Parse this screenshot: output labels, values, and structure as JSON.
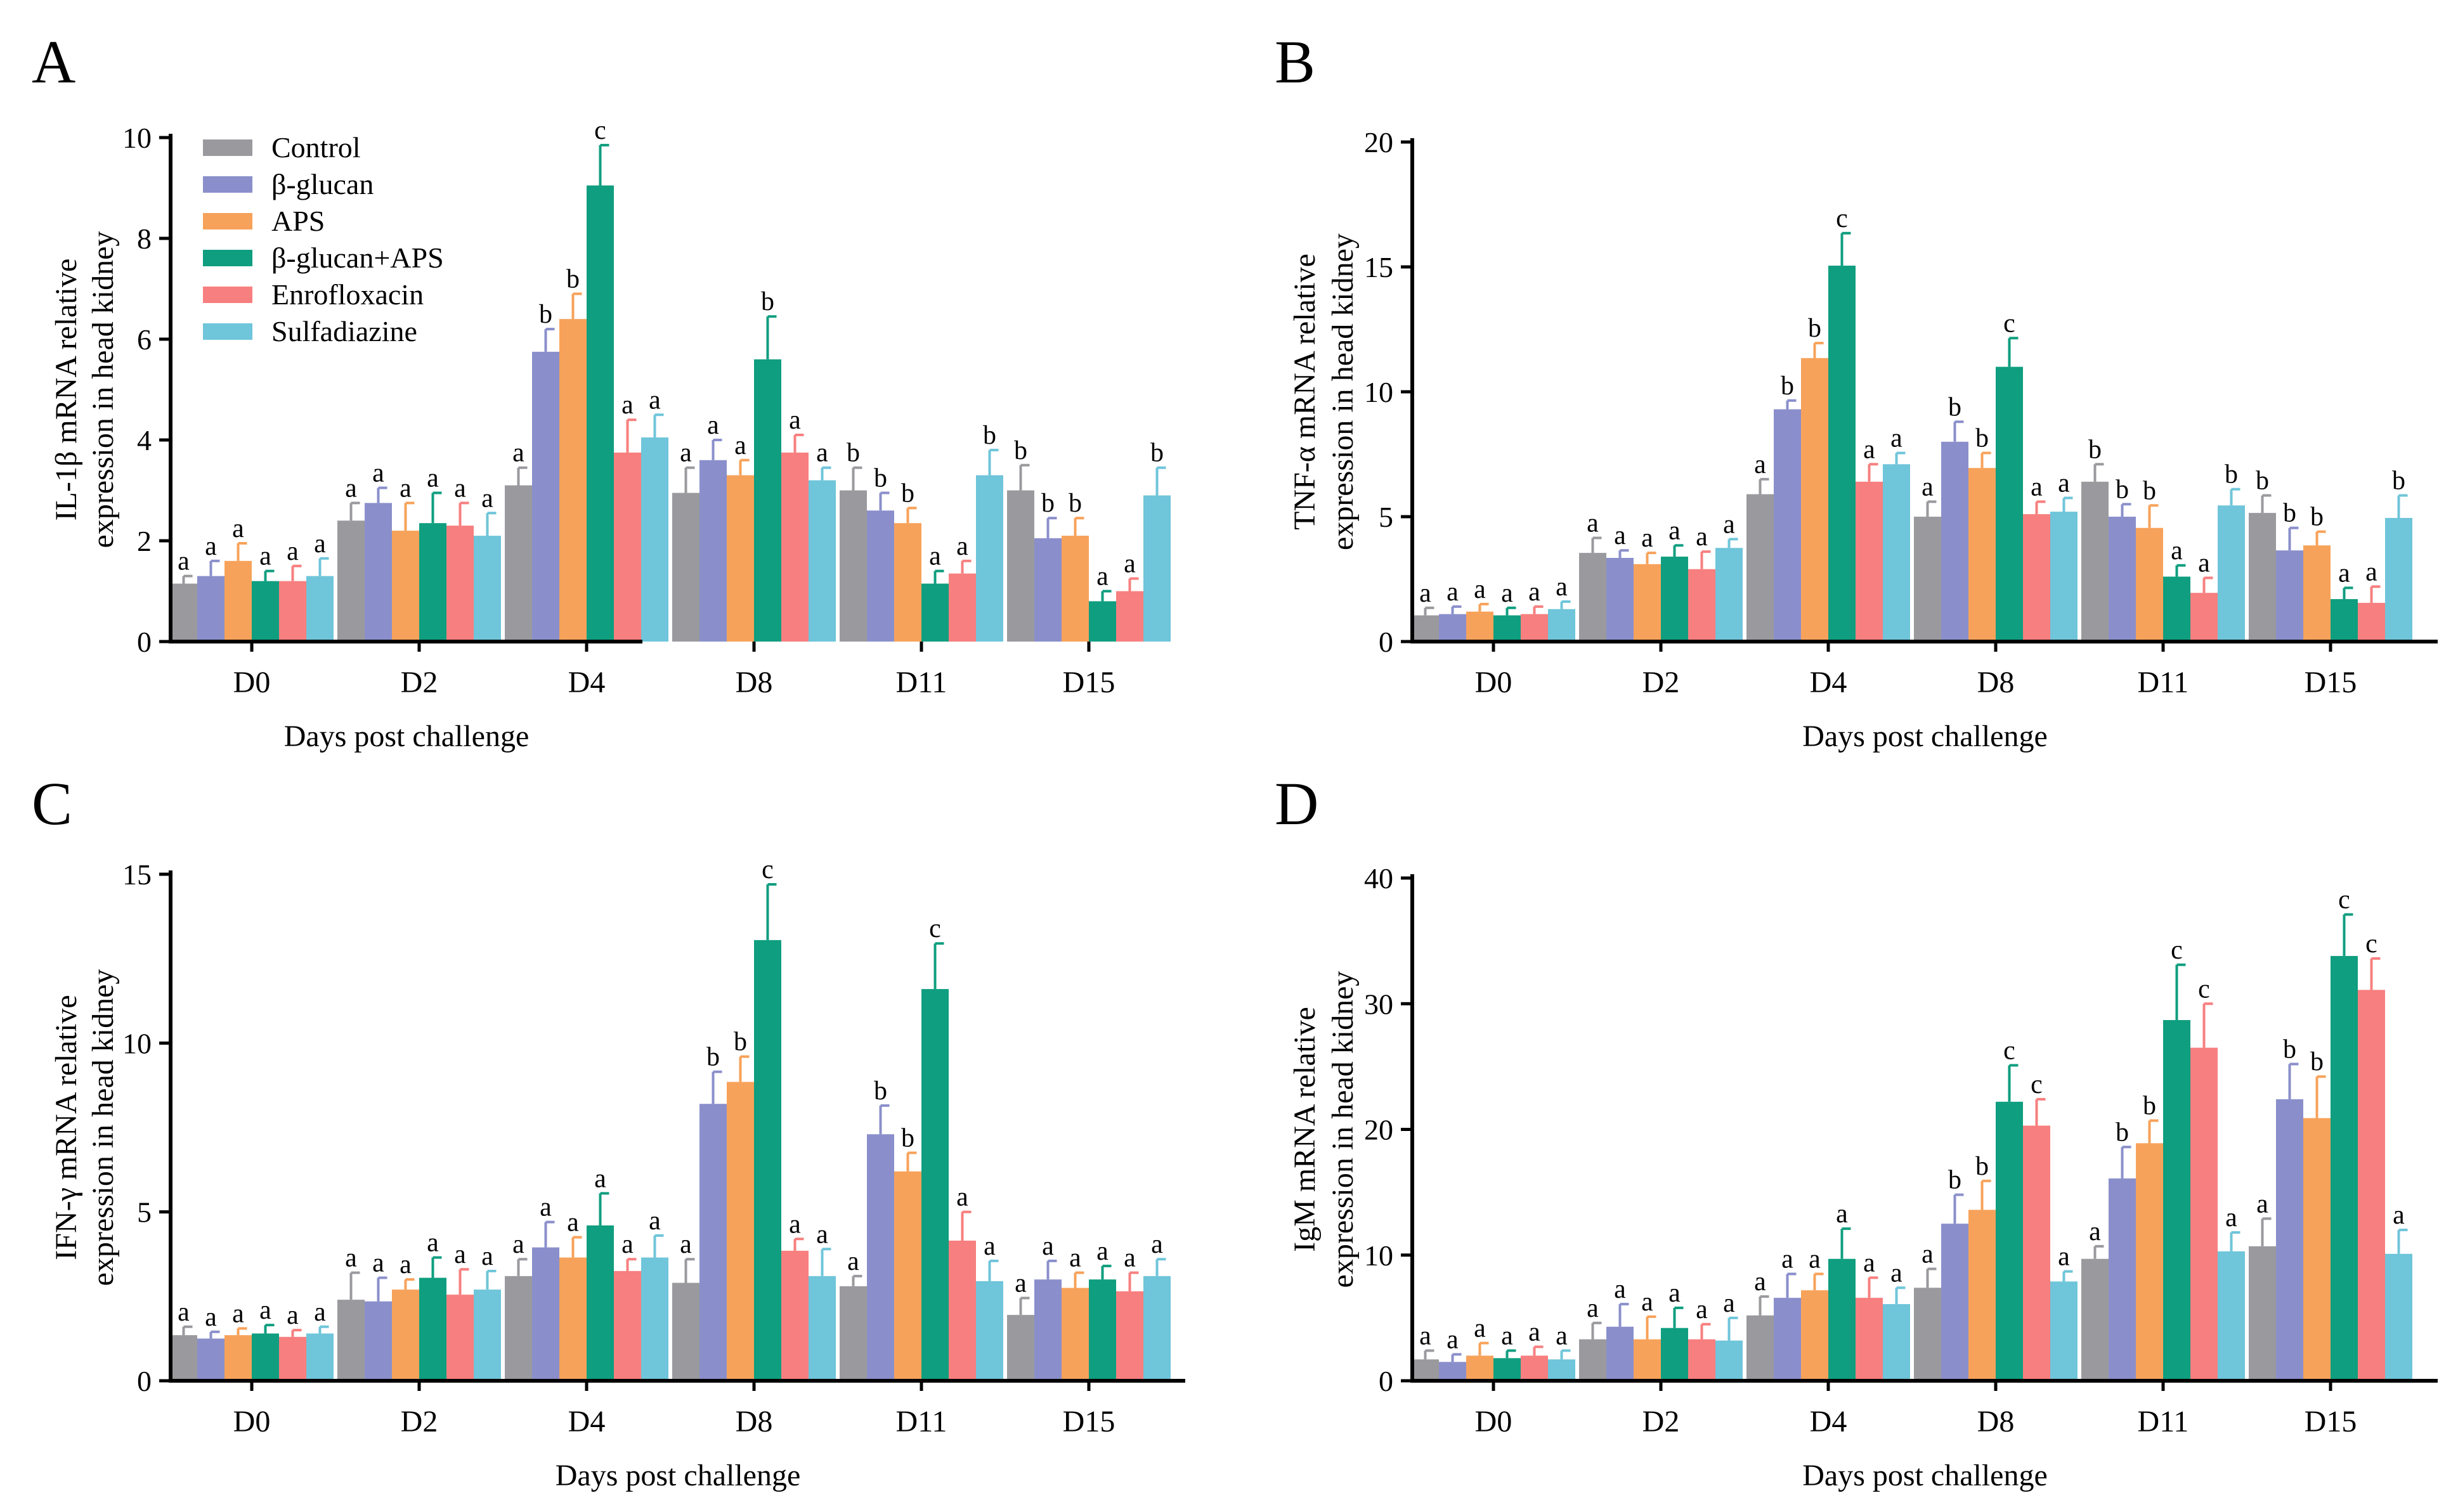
{
  "legend": [
    "Control",
    "β-glucan",
    "APS",
    "β-glucan+APS",
    "Enrofloxacin",
    "Sulfadiazine"
  ],
  "colors": {
    "Control": "#9a9a9e",
    "β-glucan": "#8a8fcb",
    "APS": "#f7a25a",
    "β-glucan+APS": "#0f9e7f",
    "Enrofloxacin": "#f77f7f",
    "Sulfadiazine": "#6fc5da"
  },
  "chart_data": [
    {
      "panel": "A",
      "type": "bar",
      "categories": [
        "D0",
        "D2",
        "D4",
        "D8",
        "D11",
        "D15"
      ],
      "xlabel": "Days post challenge",
      "ylabel": [
        "IL-1β mRNA relative",
        "expression in head kidney"
      ],
      "ylim": [
        0,
        10
      ],
      "yticks": [
        0,
        2,
        4,
        6,
        8,
        10
      ],
      "series": [
        {
          "name": "Control",
          "values": [
            1.15,
            2.4,
            3.1,
            2.95,
            3.0,
            3.0
          ],
          "errors": [
            0.15,
            0.35,
            0.35,
            0.5,
            0.45,
            0.5
          ],
          "letters": [
            "a",
            "a",
            "a",
            "a",
            "b",
            "b"
          ]
        },
        {
          "name": "β-glucan",
          "values": [
            1.3,
            2.75,
            5.75,
            3.6,
            2.6,
            2.05
          ],
          "errors": [
            0.3,
            0.3,
            0.45,
            0.4,
            0.35,
            0.4
          ],
          "letters": [
            "a",
            "a",
            "b",
            "a",
            "b",
            "b"
          ]
        },
        {
          "name": "APS",
          "values": [
            1.6,
            2.2,
            6.4,
            3.3,
            2.35,
            2.1
          ],
          "errors": [
            0.35,
            0.55,
            0.5,
            0.3,
            0.3,
            0.35
          ],
          "letters": [
            "a",
            "a",
            "b",
            "a",
            "b",
            "b"
          ]
        },
        {
          "name": "β-glucan+APS",
          "values": [
            1.2,
            2.35,
            9.05,
            5.6,
            1.15,
            0.8
          ],
          "errors": [
            0.2,
            0.6,
            0.8,
            0.85,
            0.25,
            0.2
          ],
          "letters": [
            "a",
            "a",
            "c",
            "b",
            "a",
            "a"
          ]
        },
        {
          "name": "Enrofloxacin",
          "values": [
            1.2,
            2.3,
            3.75,
            3.75,
            1.35,
            1.0
          ],
          "errors": [
            0.3,
            0.45,
            0.65,
            0.35,
            0.25,
            0.25
          ],
          "letters": [
            "a",
            "a",
            "a",
            "a",
            "a",
            "a"
          ]
        },
        {
          "name": "Sulfadiazine",
          "values": [
            1.3,
            2.1,
            4.05,
            3.2,
            3.3,
            2.9
          ],
          "errors": [
            0.35,
            0.45,
            0.45,
            0.25,
            0.5,
            0.55
          ],
          "letters": [
            "a",
            "a",
            "a",
            "a",
            "b",
            "b"
          ]
        }
      ]
    },
    {
      "panel": "B",
      "type": "bar",
      "categories": [
        "D0",
        "D2",
        "D4",
        "D8",
        "D11",
        "D15"
      ],
      "xlabel": "Days post challenge",
      "ylabel": [
        "TNF-α mRNA relative",
        "expression in head kidney"
      ],
      "ylim": [
        0,
        20
      ],
      "yticks": [
        0,
        5,
        10,
        15,
        20
      ],
      "series": [
        {
          "name": "Control",
          "values": [
            1.05,
            3.55,
            5.9,
            5.0,
            6.4,
            5.15
          ],
          "errors": [
            0.3,
            0.6,
            0.6,
            0.6,
            0.7,
            0.7
          ],
          "letters": [
            "a",
            "a",
            "a",
            "a",
            "b",
            "b"
          ]
        },
        {
          "name": "β-glucan",
          "values": [
            1.1,
            3.35,
            9.3,
            8.0,
            5.0,
            3.65
          ],
          "errors": [
            0.3,
            0.3,
            0.35,
            0.8,
            0.5,
            0.9
          ],
          "letters": [
            "a",
            "a",
            "b",
            "b",
            "b",
            "b"
          ]
        },
        {
          "name": "APS",
          "values": [
            1.2,
            3.1,
            11.35,
            6.95,
            4.55,
            3.85
          ],
          "errors": [
            0.3,
            0.45,
            0.6,
            0.6,
            0.9,
            0.55
          ],
          "letters": [
            "a",
            "a",
            "b",
            "b",
            "b",
            "b"
          ]
        },
        {
          "name": "β-glucan+APS",
          "values": [
            1.05,
            3.4,
            15.05,
            11.0,
            2.6,
            1.7
          ],
          "errors": [
            0.3,
            0.45,
            1.3,
            1.15,
            0.45,
            0.45
          ],
          "letters": [
            "a",
            "a",
            "c",
            "c",
            "a",
            "a"
          ]
        },
        {
          "name": "Enrofloxacin",
          "values": [
            1.1,
            2.9,
            6.4,
            5.1,
            1.95,
            1.55
          ],
          "errors": [
            0.3,
            0.7,
            0.7,
            0.5,
            0.6,
            0.65
          ],
          "letters": [
            "a",
            "a",
            "a",
            "a",
            "a",
            "a"
          ]
        },
        {
          "name": "Sulfadiazine",
          "values": [
            1.3,
            3.75,
            7.1,
            5.2,
            5.45,
            4.95
          ],
          "errors": [
            0.3,
            0.35,
            0.45,
            0.55,
            0.65,
            0.9
          ],
          "letters": [
            "a",
            "a",
            "a",
            "a",
            "b",
            "b"
          ]
        }
      ]
    },
    {
      "panel": "C",
      "type": "bar",
      "categories": [
        "D0",
        "D2",
        "D4",
        "D8",
        "D11",
        "D15"
      ],
      "xlabel": "Days post challenge",
      "ylabel": [
        "IFN-γ mRNA relative",
        "expression in head kidney"
      ],
      "ylim": [
        0,
        15
      ],
      "yticks": [
        0,
        5,
        10,
        15
      ],
      "series": [
        {
          "name": "Control",
          "values": [
            1.35,
            2.4,
            3.1,
            2.9,
            2.8,
            1.95
          ],
          "errors": [
            0.25,
            0.8,
            0.5,
            0.7,
            0.3,
            0.5
          ],
          "letters": [
            "a",
            "a",
            "a",
            "a",
            "a",
            "a"
          ]
        },
        {
          "name": "β-glucan",
          "values": [
            1.25,
            2.35,
            3.95,
            8.2,
            7.3,
            3.0
          ],
          "errors": [
            0.2,
            0.7,
            0.75,
            0.95,
            0.85,
            0.55
          ],
          "letters": [
            "a",
            "a",
            "a",
            "b",
            "b",
            "a"
          ]
        },
        {
          "name": "APS",
          "values": [
            1.35,
            2.7,
            3.65,
            8.85,
            6.2,
            2.75
          ],
          "errors": [
            0.2,
            0.3,
            0.6,
            0.75,
            0.55,
            0.45
          ],
          "letters": [
            "a",
            "a",
            "a",
            "b",
            "b",
            "a"
          ]
        },
        {
          "name": "β-glucan+APS",
          "values": [
            1.4,
            3.05,
            4.6,
            13.05,
            11.6,
            3.0
          ],
          "errors": [
            0.25,
            0.6,
            0.95,
            1.65,
            1.35,
            0.4
          ],
          "letters": [
            "a",
            "a",
            "a",
            "c",
            "c",
            "a"
          ]
        },
        {
          "name": "Enrofloxacin",
          "values": [
            1.3,
            2.55,
            3.25,
            3.85,
            4.15,
            2.65
          ],
          "errors": [
            0.2,
            0.75,
            0.35,
            0.35,
            0.85,
            0.55
          ],
          "letters": [
            "a",
            "a",
            "a",
            "a",
            "a",
            "a"
          ]
        },
        {
          "name": "Sulfadiazine",
          "values": [
            1.4,
            2.7,
            3.65,
            3.1,
            2.95,
            3.1
          ],
          "errors": [
            0.2,
            0.55,
            0.65,
            0.8,
            0.6,
            0.5
          ],
          "letters": [
            "a",
            "a",
            "a",
            "a",
            "a",
            "a"
          ]
        }
      ]
    },
    {
      "panel": "D",
      "type": "bar",
      "categories": [
        "D0",
        "D2",
        "D4",
        "D8",
        "D11",
        "D15"
      ],
      "xlabel": "Days post challenge",
      "ylabel": [
        "IgM mRNA relative",
        "expression in head kidney"
      ],
      "ylim": [
        0,
        40
      ],
      "yticks": [
        0,
        10,
        20,
        30,
        40
      ],
      "series": [
        {
          "name": "Control",
          "values": [
            1.7,
            3.3,
            5.2,
            7.4,
            9.7,
            10.7
          ],
          "errors": [
            0.7,
            1.3,
            1.5,
            1.5,
            1.0,
            2.2
          ],
          "letters": [
            "a",
            "a",
            "a",
            "a",
            "a",
            "a"
          ]
        },
        {
          "name": "β-glucan",
          "values": [
            1.5,
            4.3,
            6.6,
            12.5,
            16.1,
            22.4
          ],
          "errors": [
            0.6,
            1.8,
            1.9,
            2.3,
            2.5,
            2.8
          ],
          "letters": [
            "a",
            "a",
            "a",
            "b",
            "b",
            "b"
          ]
        },
        {
          "name": "APS",
          "values": [
            2.0,
            3.3,
            7.2,
            13.6,
            18.9,
            20.9
          ],
          "errors": [
            1.0,
            1.8,
            1.3,
            2.3,
            1.8,
            3.3
          ],
          "letters": [
            "a",
            "a",
            "a",
            "b",
            "b",
            "b"
          ]
        },
        {
          "name": "β-glucan+APS",
          "values": [
            1.8,
            4.2,
            9.7,
            22.2,
            28.7,
            33.8
          ],
          "errors": [
            0.6,
            1.6,
            2.4,
            2.9,
            4.4,
            3.3
          ],
          "letters": [
            "a",
            "a",
            "a",
            "c",
            "c",
            "c"
          ]
        },
        {
          "name": "Enrofloxacin",
          "values": [
            2.0,
            3.3,
            6.6,
            20.3,
            26.5,
            31.1
          ],
          "errors": [
            0.7,
            1.2,
            1.6,
            2.1,
            3.5,
            2.5
          ],
          "letters": [
            "a",
            "a",
            "a",
            "c",
            "c",
            "c"
          ]
        },
        {
          "name": "Sulfadiazine",
          "values": [
            1.7,
            3.2,
            6.1,
            7.9,
            10.3,
            10.1
          ],
          "errors": [
            0.7,
            1.8,
            1.3,
            0.8,
            1.5,
            1.9
          ],
          "letters": [
            "a",
            "a",
            "a",
            "a",
            "a",
            "a"
          ]
        }
      ]
    }
  ]
}
